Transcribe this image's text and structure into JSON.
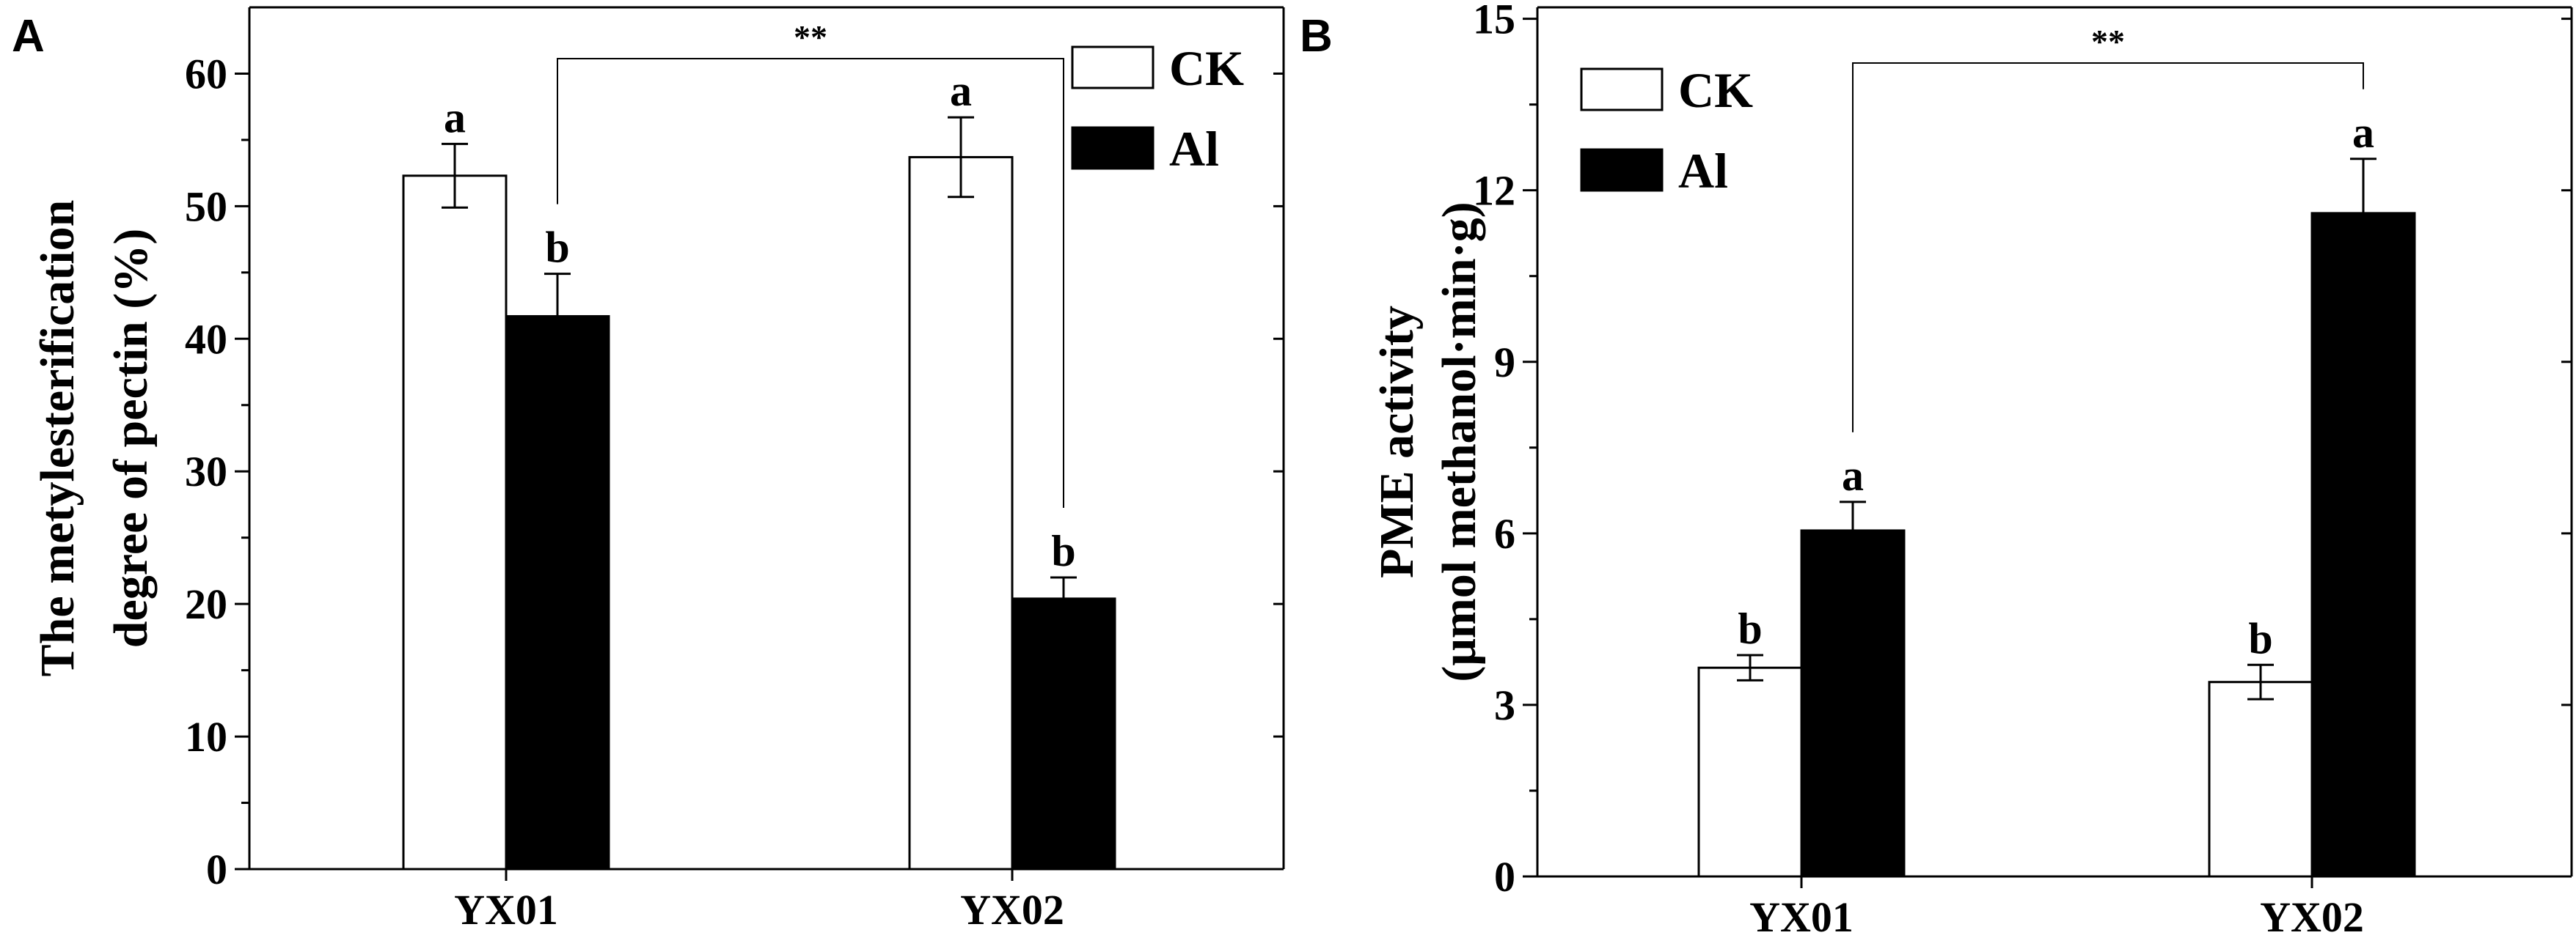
{
  "chart_data": [
    {
      "type": "bar",
      "panel_label": "A",
      "ylabel_lines": [
        "The metylesterification",
        "degree of pectin (%)"
      ],
      "xlabel": "",
      "ylim": [
        0,
        65
      ],
      "yticks": [
        0,
        10,
        20,
        30,
        40,
        50,
        60
      ],
      "categories": [
        "YX01",
        "YX02"
      ],
      "series": [
        {
          "name": "CK",
          "color": "#ffffff",
          "values": [
            52.3,
            53.7
          ],
          "errors": [
            2.4,
            3.0
          ],
          "letters": [
            "a",
            "a"
          ]
        },
        {
          "name": "Al",
          "color": "#000000",
          "values": [
            41.7,
            20.4
          ],
          "errors": [
            3.2,
            1.6
          ],
          "letters": [
            "b",
            "b"
          ]
        }
      ],
      "significance": {
        "label": "**",
        "from": {
          "series": 1,
          "category": 0
        },
        "to": {
          "series": 1,
          "category": 1
        }
      },
      "legend_position": "top-right",
      "grid": false
    },
    {
      "type": "bar",
      "panel_label": "B",
      "ylabel_lines": [
        "PME activity",
        "(μmol methanol·min·g)"
      ],
      "xlabel": "",
      "ylim": [
        0,
        15.2
      ],
      "yticks": [
        0,
        3,
        6,
        9,
        12,
        15
      ],
      "categories": [
        "YX01",
        "YX02"
      ],
      "series": [
        {
          "name": "CK",
          "color": "#ffffff",
          "values": [
            3.65,
            3.4
          ],
          "errors": [
            0.22,
            0.3
          ],
          "letters": [
            "b",
            "b"
          ]
        },
        {
          "name": "Al",
          "color": "#000000",
          "values": [
            6.05,
            11.6
          ],
          "errors": [
            0.5,
            0.95
          ],
          "letters": [
            "a",
            "a"
          ]
        }
      ],
      "significance": {
        "label": "**",
        "from": {
          "series": 1,
          "category": 0
        },
        "to": {
          "series": 1,
          "category": 1
        }
      },
      "legend_position": "top-left",
      "grid": false
    }
  ]
}
